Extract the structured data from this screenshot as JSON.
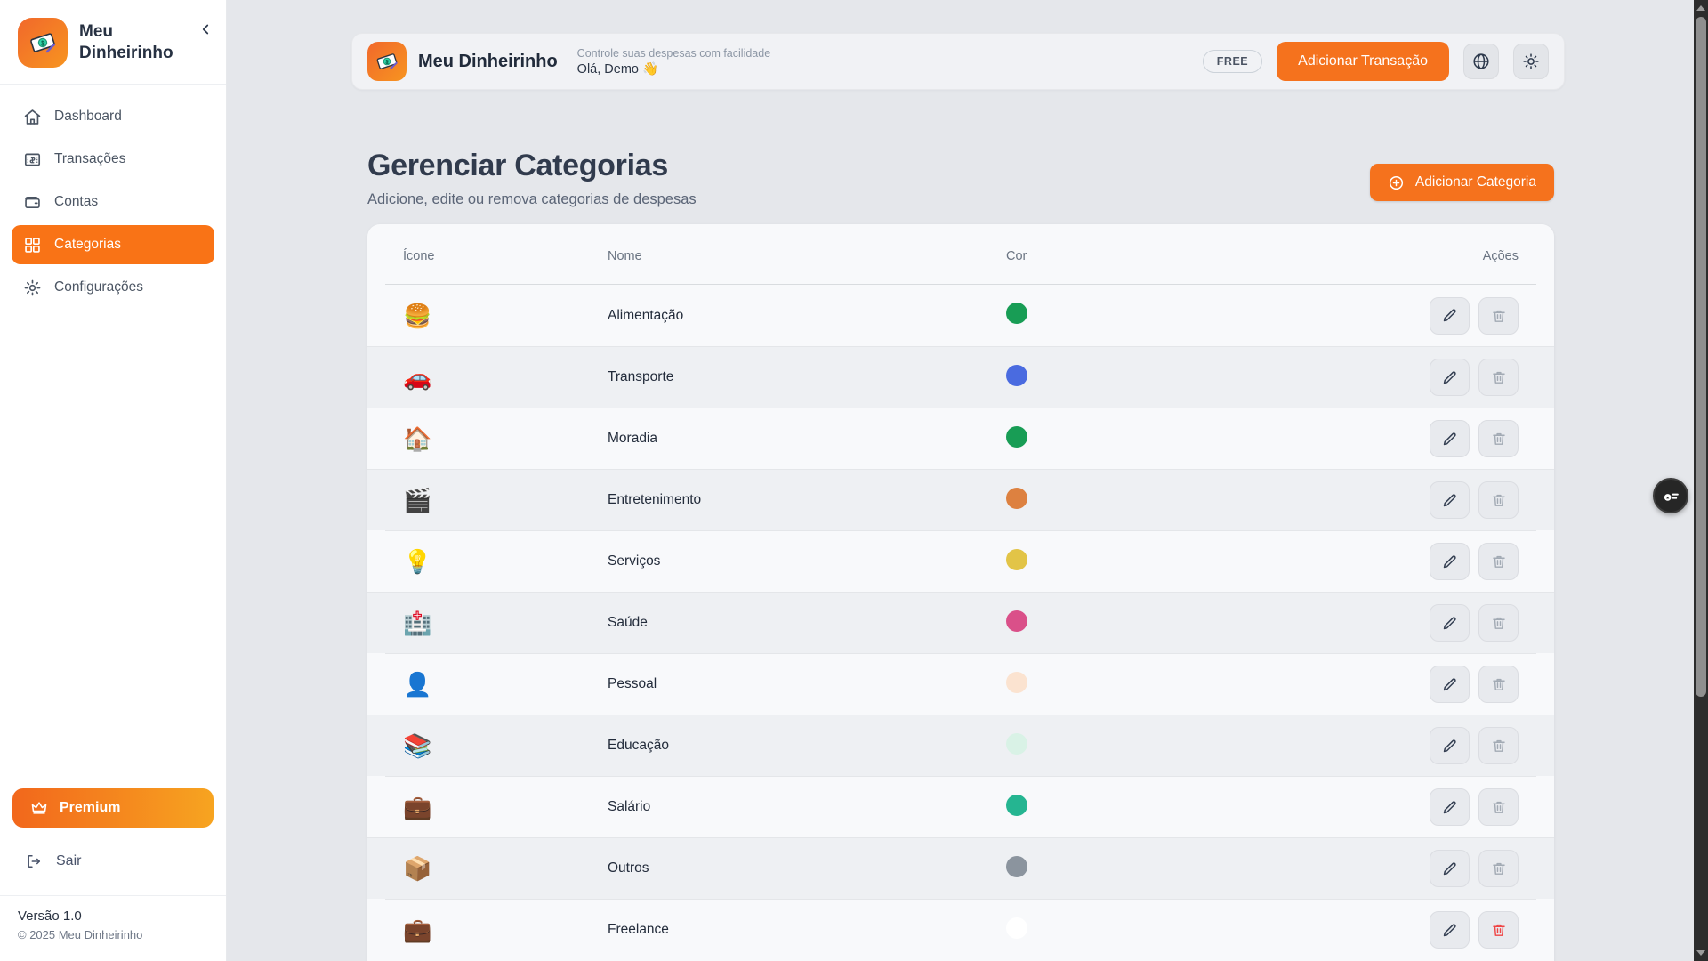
{
  "sidebar": {
    "brand_title": "Meu Dinheirinho",
    "items": [
      {
        "label": "Dashboard",
        "icon": "home-icon",
        "active": false
      },
      {
        "label": "Transações",
        "icon": "transactions-icon",
        "active": false
      },
      {
        "label": "Contas",
        "icon": "wallet-icon",
        "active": false
      },
      {
        "label": "Categorias",
        "icon": "grid-icon",
        "active": true
      },
      {
        "label": "Configurações",
        "icon": "gear-icon",
        "active": false
      }
    ],
    "premium_label": "Premium",
    "logout_label": "Sair",
    "version": "Versão 1.0",
    "copyright": "© 2025 Meu Dinheirinho"
  },
  "header": {
    "brand": "Meu Dinheirinho",
    "tagline": "Controle suas despesas com facilidade",
    "greeting": "Olá, Demo 👋",
    "plan_badge": "FREE",
    "add_transaction_label": "Adicionar Transação"
  },
  "page": {
    "title": "Gerenciar Categorias",
    "subtitle": "Adicione, edite ou remova categorias de despesas",
    "add_category_label": "Adicionar Categoria"
  },
  "table": {
    "headers": {
      "icon": "Ícone",
      "name": "Nome",
      "color": "Cor",
      "actions": "Ações"
    },
    "rows": [
      {
        "emoji": "🍔",
        "name": "Alimentação",
        "color": "#189d55",
        "deletable": false
      },
      {
        "emoji": "🚗",
        "name": "Transporte",
        "color": "#4a6be0",
        "deletable": false
      },
      {
        "emoji": "🏠",
        "name": "Moradia",
        "color": "#189d55",
        "deletable": false
      },
      {
        "emoji": "🎬",
        "name": "Entretenimento",
        "color": "#dd8140",
        "deletable": false
      },
      {
        "emoji": "💡",
        "name": "Serviços",
        "color": "#e2c447",
        "deletable": false
      },
      {
        "emoji": "🏥",
        "name": "Saúde",
        "color": "#da5089",
        "deletable": false
      },
      {
        "emoji": "👤",
        "name": "Pessoal",
        "color": "#fbe3d0",
        "deletable": false
      },
      {
        "emoji": "📚",
        "name": "Educação",
        "color": "#d9f2e6",
        "deletable": false
      },
      {
        "emoji": "💼",
        "name": "Salário",
        "color": "#25b591",
        "deletable": false
      },
      {
        "emoji": "📦",
        "name": "Outros",
        "color": "#8b949e",
        "deletable": false
      },
      {
        "emoji": "💼",
        "name": "Freelance",
        "color": "#ffffff",
        "deletable": true
      }
    ]
  },
  "colors": {
    "accent": "#f5721d",
    "active_nav": "#f97316",
    "premium_gradient": [
      "#f2671c",
      "#f7a420"
    ],
    "danger": "#ef4444",
    "page_bg": "#e5e7eb",
    "card_bg": "#f8f9fb",
    "row_alt_bg": "#eef0f3"
  }
}
